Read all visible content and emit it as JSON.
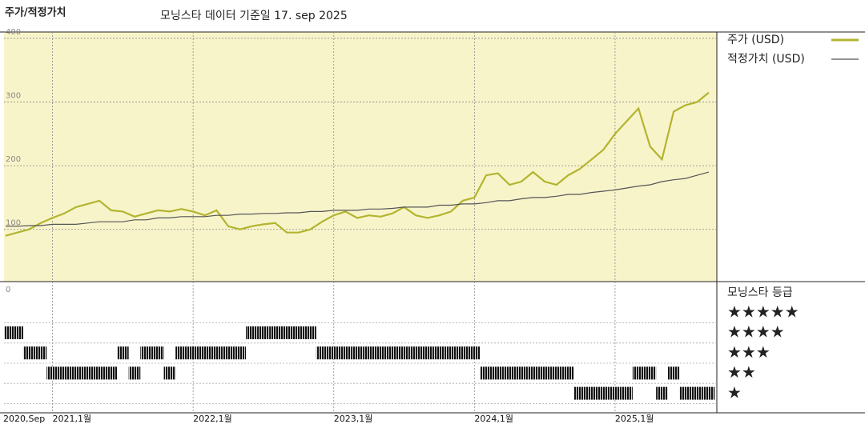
{
  "chart_data": {
    "type": "line",
    "title": "주가/적정가치",
    "subtitle": "모닝스타 데이터 기준일 17. sep 2025",
    "x": [
      "2020-09",
      "2020-10",
      "2020-11",
      "2020-12",
      "2021-01",
      "2021-02",
      "2021-03",
      "2021-04",
      "2021-05",
      "2021-06",
      "2021-07",
      "2021-08",
      "2021-09",
      "2021-10",
      "2021-11",
      "2021-12",
      "2022-01",
      "2022-02",
      "2022-03",
      "2022-04",
      "2022-05",
      "2022-06",
      "2022-07",
      "2022-08",
      "2022-09",
      "2022-10",
      "2022-11",
      "2022-12",
      "2023-01",
      "2023-02",
      "2023-03",
      "2023-04",
      "2023-05",
      "2023-06",
      "2023-07",
      "2023-08",
      "2023-09",
      "2023-10",
      "2023-11",
      "2023-12",
      "2024-01",
      "2024-02",
      "2024-03",
      "2024-04",
      "2024-05",
      "2024-06",
      "2024-07",
      "2024-08",
      "2024-09",
      "2024-10",
      "2024-11",
      "2024-12",
      "2025-01",
      "2025-02",
      "2025-03",
      "2025-04",
      "2025-05",
      "2025-06",
      "2025-07",
      "2025-08",
      "2025-09"
    ],
    "series": [
      {
        "name": "주가 (USD)",
        "color": "#b3b430",
        "values": [
          90,
          95,
          100,
          110,
          118,
          125,
          135,
          140,
          145,
          130,
          128,
          120,
          125,
          130,
          128,
          132,
          128,
          122,
          130,
          105,
          100,
          105,
          108,
          110,
          95,
          95,
          100,
          112,
          122,
          128,
          118,
          122,
          120,
          125,
          135,
          122,
          118,
          122,
          128,
          145,
          150,
          185,
          188,
          170,
          175,
          190,
          175,
          170,
          185,
          195,
          210,
          225,
          250,
          270,
          290,
          230,
          210,
          285,
          295,
          300,
          315
        ]
      },
      {
        "name": "적정가치 (USD)",
        "color": "#555555",
        "values": [
          105,
          105,
          106,
          106,
          108,
          108,
          108,
          110,
          112,
          112,
          112,
          115,
          115,
          118,
          118,
          120,
          120,
          120,
          122,
          122,
          124,
          124,
          125,
          125,
          126,
          126,
          128,
          128,
          130,
          130,
          130,
          132,
          132,
          133,
          135,
          135,
          135,
          138,
          138,
          140,
          140,
          142,
          145,
          145,
          148,
          150,
          150,
          152,
          155,
          155,
          158,
          160,
          162,
          165,
          168,
          170,
          175,
          178,
          180,
          185,
          190
        ]
      }
    ],
    "xlim": [
      "2020-09",
      "2025-09"
    ],
    "xticks": [
      {
        "value": "2020-09",
        "label": "2020,Sep"
      },
      {
        "value": "2021-01",
        "label": "2021,1월"
      },
      {
        "value": "2022-01",
        "label": "2022,1월"
      },
      {
        "value": "2023-01",
        "label": "2023,1월"
      },
      {
        "value": "2024-01",
        "label": "2024,1월"
      },
      {
        "value": "2025-01",
        "label": "2025,1월"
      }
    ],
    "ylim": [
      18,
      410
    ],
    "yticks": [
      100,
      200,
      300,
      400
    ],
    "grid": true,
    "rating_title": "모닝스타 등급",
    "rating_axis_label": "0",
    "rating_levels": [
      {
        "value": 5,
        "label": "★★★★★"
      },
      {
        "value": 4,
        "label": "★★★★"
      },
      {
        "value": 3,
        "label": "★★★"
      },
      {
        "value": 2,
        "label": "★★"
      },
      {
        "value": 1,
        "label": "★"
      }
    ],
    "ratings": {
      "values": [
        4,
        4,
        3,
        3,
        2,
        2,
        2,
        2,
        2,
        2,
        3,
        2,
        3,
        3,
        2,
        3,
        3,
        3,
        3,
        3,
        3,
        4,
        4,
        4,
        4,
        4,
        4,
        3,
        3,
        3,
        3,
        3,
        3,
        3,
        3,
        3,
        3,
        3,
        3,
        3,
        3,
        2,
        2,
        2,
        2,
        2,
        2,
        2,
        2,
        1,
        1,
        1,
        1,
        1,
        2,
        2,
        1,
        2,
        1,
        1,
        1
      ]
    }
  }
}
